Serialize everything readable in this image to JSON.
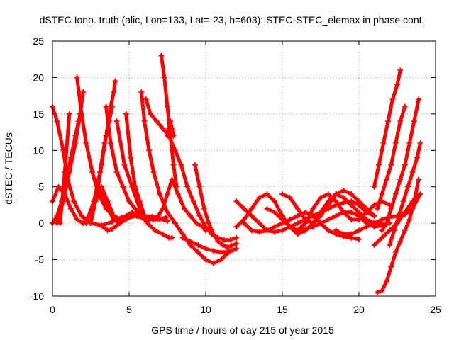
{
  "chart_data": {
    "type": "scatter",
    "title": "dSTEC Iono. truth (alic, Lon=133, Lat=-23, h=603): STEC-STEC_elemax in phase cont.",
    "xlabel": "GPS time / hours of day 215 of year 2015",
    "ylabel": "dSTEC  / TECUs",
    "xlim": [
      0,
      25
    ],
    "ylim": [
      -10,
      25
    ],
    "xticks": [
      0,
      5,
      10,
      15,
      20,
      25
    ],
    "yticks": [
      -10,
      -5,
      0,
      5,
      10,
      15,
      20,
      25
    ],
    "xtick_labels": [
      "0",
      "5",
      "10",
      "15",
      "20",
      "25"
    ],
    "ytick_labels": [
      "-10",
      "-5",
      "0",
      "5",
      "10",
      "15",
      "20",
      "25"
    ],
    "grid": true,
    "marker": "+",
    "color": "#ff0000",
    "series": [
      {
        "x": [
          0.0,
          0.3,
          0.7,
          1.0,
          1.4,
          1.9,
          2.5,
          3.2,
          3.9,
          4.5,
          5.0,
          5.5,
          6.0,
          6.5,
          7.0,
          7.5
        ],
        "y": [
          16,
          14,
          10,
          6,
          3,
          1,
          0,
          -0.3,
          0.2,
          0.8,
          1,
          1.1,
          1,
          0.9,
          0.6,
          0.3
        ]
      },
      {
        "x": [
          0.0,
          0.3,
          0.6,
          0.9,
          1.2,
          1.5,
          1.7
        ],
        "y": [
          0,
          1,
          3,
          6,
          9,
          12,
          14
        ]
      },
      {
        "x": [
          0.0,
          0.4,
          0.8,
          1.2,
          1.6,
          2.0,
          2.4,
          2.8,
          3.2,
          3.6,
          4.0,
          4.4,
          4.8,
          5.2,
          5.6,
          6.0
        ],
        "y": [
          3,
          5,
          4,
          2,
          0.5,
          0,
          1,
          3,
          5,
          3,
          1,
          0.5,
          1,
          1.5,
          1,
          0.5
        ]
      },
      {
        "x": [
          0.3,
          0.7,
          1.1,
          1.5,
          1.8,
          2.0
        ],
        "y": [
          0,
          3,
          7,
          11,
          15,
          18
        ]
      },
      {
        "x": [
          0.5,
          0.8,
          1.1
        ],
        "y": [
          0,
          7,
          15
        ]
      },
      {
        "x": [
          1.6,
          1.9,
          2.2,
          2.6,
          3.0,
          3.5,
          4.0,
          4.5,
          5.0,
          5.5
        ],
        "y": [
          20,
          15,
          11,
          7,
          4,
          2,
          1,
          0.5,
          0.8,
          1
        ]
      },
      {
        "x": [
          2.5,
          2.9,
          3.2,
          3.5,
          3.8,
          4.0,
          4.1
        ],
        "y": [
          0,
          4,
          8,
          12,
          16,
          18,
          19.5
        ]
      },
      {
        "x": [
          2.2,
          2.7,
          3.1,
          3.4,
          3.7,
          3.9
        ],
        "y": [
          0,
          3,
          7,
          11,
          14,
          16
        ]
      },
      {
        "x": [
          3.5,
          3.8,
          4.2,
          4.6,
          5.0,
          5.4,
          5.8,
          6.2,
          6.6,
          7.0,
          7.4
        ],
        "y": [
          16,
          11,
          7,
          5,
          3,
          2,
          1,
          0.5,
          0.5,
          0.5,
          0.8
        ]
      },
      {
        "x": [
          2.8,
          3.2,
          3.6,
          4.0,
          4.4,
          4.8,
          5.2,
          5.6,
          6.0
        ],
        "y": [
          6,
          4,
          2,
          0.5,
          0,
          0.5,
          1,
          1,
          0.8
        ]
      },
      {
        "x": [
          3.3,
          3.6,
          3.9,
          4.2,
          4.6,
          5.0
        ],
        "y": [
          -0.5,
          -1,
          -0.8,
          -0.3,
          0.5,
          0.8
        ]
      },
      {
        "x": [
          4.2,
          4.7,
          5.2,
          5.7,
          6.2,
          6.7,
          7.2,
          7.6,
          7.8
        ],
        "y": [
          14,
          8,
          5,
          2,
          0,
          -1,
          -1.5,
          -2,
          -2
        ]
      },
      {
        "x": [
          4.8,
          5.1,
          5.4,
          5.7,
          6.0,
          6.3,
          6.6,
          6.9,
          7.2,
          7.5,
          7.8,
          8.2,
          8.6,
          9.0,
          9.4,
          9.8,
          10.0
        ],
        "y": [
          15,
          9,
          5,
          3,
          1,
          0.5,
          0.5,
          1,
          2,
          4,
          6,
          4,
          2,
          1,
          0,
          -0.5,
          -1
        ]
      },
      {
        "x": [
          5.8,
          6.0,
          6.3,
          6.6,
          7.0,
          7.5,
          8.0,
          8.5,
          9.0,
          9.5,
          10.0,
          10.5,
          11.0,
          11.5,
          12.0
        ],
        "y": [
          18,
          14,
          10,
          7,
          4,
          1.5,
          0,
          -1.5,
          -3,
          -4,
          -5,
          -5.5,
          -5,
          -4,
          -3.5
        ]
      },
      {
        "x": [
          6.1,
          6.4,
          6.8,
          7.2,
          7.6,
          8.0,
          8.4,
          8.8,
          9.2,
          9.6,
          10.0,
          10.4,
          10.8,
          11.2,
          11.6,
          12.0
        ],
        "y": [
          17,
          15,
          14,
          13,
          12,
          10,
          8,
          5,
          3,
          1,
          -0.5,
          -1.5,
          -2,
          -2.3,
          -2.3,
          -2.0
        ]
      },
      {
        "x": [
          7.1,
          7.3,
          7.5,
          7.7,
          7.9,
          8.1
        ],
        "y": [
          23,
          20,
          16,
          12,
          8,
          5
        ]
      },
      {
        "x": [
          7.5,
          7.6,
          7.7,
          7.8,
          7.9
        ],
        "y": [
          12,
          13,
          14,
          13,
          12
        ]
      },
      {
        "x": [
          8.5,
          9.0,
          9.5,
          10.0,
          10.5,
          11.0,
          11.5,
          12.0
        ],
        "y": [
          -2,
          -2.5,
          -3,
          -3.5,
          -3.8,
          -4,
          -3.9,
          -3.5
        ]
      },
      {
        "x": [
          9.3,
          9.6,
          9.9,
          10.2,
          10.5,
          10.8,
          11.1,
          11.4,
          11.7,
          12.0
        ],
        "y": [
          8,
          5,
          2,
          0,
          -1.5,
          -2.5,
          -3,
          -3.3,
          -3.1,
          -2.8
        ]
      },
      {
        "x": [
          12.0,
          12.5,
          13.0,
          13.5,
          14.0,
          14.5,
          15.0,
          15.5,
          16.0,
          16.5,
          17.0,
          17.5,
          18.0,
          18.5,
          19.0,
          19.5,
          20.0,
          20.5,
          21.0
        ],
        "y": [
          3,
          2,
          1,
          0,
          -1,
          -1.2,
          -1,
          -0.5,
          0,
          0.5,
          1,
          1.5,
          2,
          2.5,
          2.8,
          3,
          2.5,
          1.5,
          1
        ]
      },
      {
        "x": [
          12.0,
          12.5,
          13.0,
          13.5,
          14.0,
          14.5,
          15.0,
          15.5,
          16.0,
          16.5,
          17.0,
          17.5,
          18.0,
          18.5,
          19.0,
          19.5,
          20.0,
          20.5,
          21.0
        ],
        "y": [
          -0.5,
          0.5,
          2,
          3.5,
          4,
          3,
          1,
          -0.5,
          -1.5,
          -1,
          0,
          1.5,
          3,
          4,
          4.5,
          4,
          3,
          2,
          1
        ]
      },
      {
        "x": [
          12.5,
          13.0,
          13.5,
          14.0,
          14.5,
          15.0,
          15.5,
          16.0,
          16.5,
          17.0,
          17.5,
          18.0,
          18.5,
          19.0,
          19.5,
          20.0
        ],
        "y": [
          0,
          -1,
          -1.2,
          -1,
          -0.5,
          0,
          0.5,
          1,
          1.5,
          1,
          0,
          -1,
          -1.5,
          -1.8,
          -2,
          -2.2
        ]
      },
      {
        "x": [
          14.0,
          14.5,
          15.0,
          15.5,
          16.0,
          16.5,
          17.0,
          17.5,
          18.0,
          18.5,
          19.0,
          19.5,
          20.0,
          20.5,
          21.0,
          21.5,
          22.0
        ],
        "y": [
          2,
          1.5,
          0.5,
          -0.5,
          -1,
          -0.8,
          -0.5,
          0,
          0.5,
          1,
          1.5,
          1.5,
          1,
          0,
          -0.5,
          -0.3,
          0
        ]
      },
      {
        "x": [
          15.0,
          15.5,
          16.0,
          16.5,
          17.0,
          17.5,
          18.0,
          18.5,
          19.0,
          19.5,
          20.0,
          20.5,
          21.0,
          21.5
        ],
        "y": [
          4,
          3.5,
          2,
          0.5,
          0,
          1,
          2.5,
          4,
          3.5,
          2.5,
          1.5,
          0.5,
          0,
          0
        ]
      },
      {
        "x": [
          16.0,
          16.5,
          17.0,
          17.5,
          18.0,
          18.5,
          19.0,
          19.5,
          20.0,
          20.5,
          21.0,
          21.5,
          22.0
        ],
        "y": [
          -1,
          0,
          2,
          3.5,
          4,
          3,
          1.5,
          0.5,
          0.5,
          1.5,
          2.5,
          3,
          2.5
        ]
      },
      {
        "x": [
          18.5,
          19.0,
          19.5,
          20.0,
          20.5,
          21.0,
          21.5,
          22.0,
          22.5,
          23.0,
          23.5,
          24.0
        ],
        "y": [
          -1,
          -1.5,
          -1.5,
          -1,
          -0.5,
          0,
          0.5,
          0.8,
          1,
          1.2,
          2,
          4
        ]
      },
      {
        "x": [
          21.0,
          21.3,
          21.6,
          21.9,
          22.2,
          22.5,
          22.7
        ],
        "y": [
          5,
          8,
          11,
          14,
          17,
          19,
          21
        ]
      },
      {
        "x": [
          21.2,
          21.5,
          21.8,
          22.1,
          22.4,
          22.7,
          23.0
        ],
        "y": [
          2,
          4,
          6,
          8,
          11,
          14,
          16
        ]
      },
      {
        "x": [
          21.5,
          21.8,
          22.1,
          22.4,
          22.7,
          23.0,
          23.3,
          23.6,
          23.9
        ],
        "y": [
          -1,
          0,
          2,
          4,
          6,
          8,
          11,
          14,
          17
        ]
      },
      {
        "x": [
          21.0,
          21.5,
          22.0,
          22.5,
          23.0,
          23.5,
          24.0
        ],
        "y": [
          -3,
          -2,
          -1,
          0,
          1.5,
          3,
          4
        ]
      },
      {
        "x": [
          21.2,
          21.5,
          21.8,
          22.1,
          22.4,
          22.7,
          23.0,
          23.3,
          23.6,
          23.9
        ],
        "y": [
          -9.5,
          -9.3,
          -8,
          -6,
          -4,
          -2.5,
          -1,
          0.5,
          3,
          6
        ]
      },
      {
        "x": [
          22.0,
          22.3,
          22.6,
          22.9,
          23.2,
          23.5,
          23.8,
          24.0
        ],
        "y": [
          -3,
          -1,
          1,
          3,
          5,
          7,
          9,
          11
        ]
      }
    ]
  }
}
